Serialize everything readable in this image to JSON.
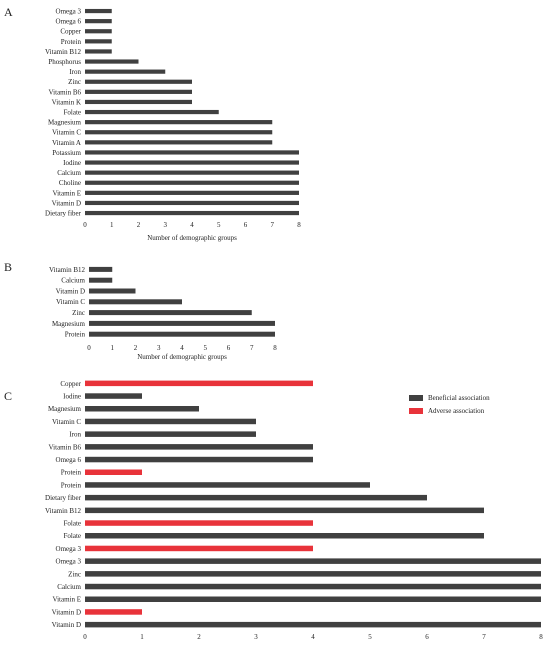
{
  "colors": {
    "beneficial": "#404040",
    "adverse": "#e8333a"
  },
  "chart_data": [
    {
      "panel": "A",
      "type": "bar",
      "orientation": "horizontal",
      "categories": [
        "Omega 3",
        "Omega 6",
        "Copper",
        "Protein",
        "Vitamin B12",
        "Phosphorus",
        "Iron",
        "Zinc",
        "Vitamin B6",
        "Vitamin K",
        "Folate",
        "Magnesium",
        "Vitamin C",
        "Vitamin A",
        "Potassium",
        "Iodine",
        "Calcium",
        "Choline",
        "Vitamin E",
        "Vitamin D",
        "Dietary fiber"
      ],
      "values": [
        1,
        1,
        1,
        1,
        1,
        2,
        3,
        4,
        4,
        4,
        5,
        7,
        7,
        7,
        8,
        8,
        8,
        8,
        8,
        8,
        8
      ],
      "xlabel": "Number of demographic groups",
      "xticks": [
        "0",
        "1",
        "2",
        "3",
        "4",
        "5",
        "6",
        "7",
        "8"
      ],
      "xlim": [
        0,
        8
      ]
    },
    {
      "panel": "B",
      "type": "bar",
      "orientation": "horizontal",
      "categories": [
        "Vitamin B12",
        "Calcium",
        "Vitamin D",
        "Vitamin C",
        "Zinc",
        "Magnesium",
        "Protein"
      ],
      "values": [
        1,
        1,
        2,
        4,
        7,
        8,
        8
      ],
      "xlabel": "Number of demographic groups",
      "xticks": [
        "0",
        "1",
        "2",
        "3",
        "4",
        "5",
        "6",
        "7",
        "8"
      ],
      "xlim": [
        0,
        8
      ]
    },
    {
      "panel": "C",
      "type": "bar",
      "orientation": "horizontal",
      "categories": [
        "Copper",
        "Iodine",
        "Magnesium",
        "Vitamin C",
        "Iron",
        "Vitamin B6",
        "Omega 6",
        "Protein",
        "Protein",
        "Dietary fiber",
        "Vitamin B12",
        "Folate",
        "Folate",
        "Omega 3",
        "Omega 3",
        "Zinc",
        "Calcium",
        "Vitamin E",
        "Vitamin D",
        "Vitamin D"
      ],
      "values": [
        4,
        1,
        2,
        3,
        3,
        4,
        4,
        1,
        5,
        6,
        7,
        4,
        7,
        4,
        8,
        8,
        8,
        8,
        1,
        8
      ],
      "association": [
        "adverse",
        "beneficial",
        "beneficial",
        "beneficial",
        "beneficial",
        "beneficial",
        "beneficial",
        "adverse",
        "beneficial",
        "beneficial",
        "beneficial",
        "adverse",
        "beneficial",
        "adverse",
        "beneficial",
        "beneficial",
        "beneficial",
        "beneficial",
        "adverse",
        "beneficial"
      ],
      "xlabel": "",
      "xticks": [
        "0",
        "1",
        "2",
        "3",
        "4",
        "5",
        "6",
        "7",
        "8"
      ],
      "xlim": [
        0,
        8
      ],
      "legend": {
        "placement": "top-right",
        "entries": [
          {
            "label": "Beneficial association",
            "key": "beneficial"
          },
          {
            "label": "Adverse association",
            "key": "adverse"
          }
        ]
      }
    }
  ]
}
